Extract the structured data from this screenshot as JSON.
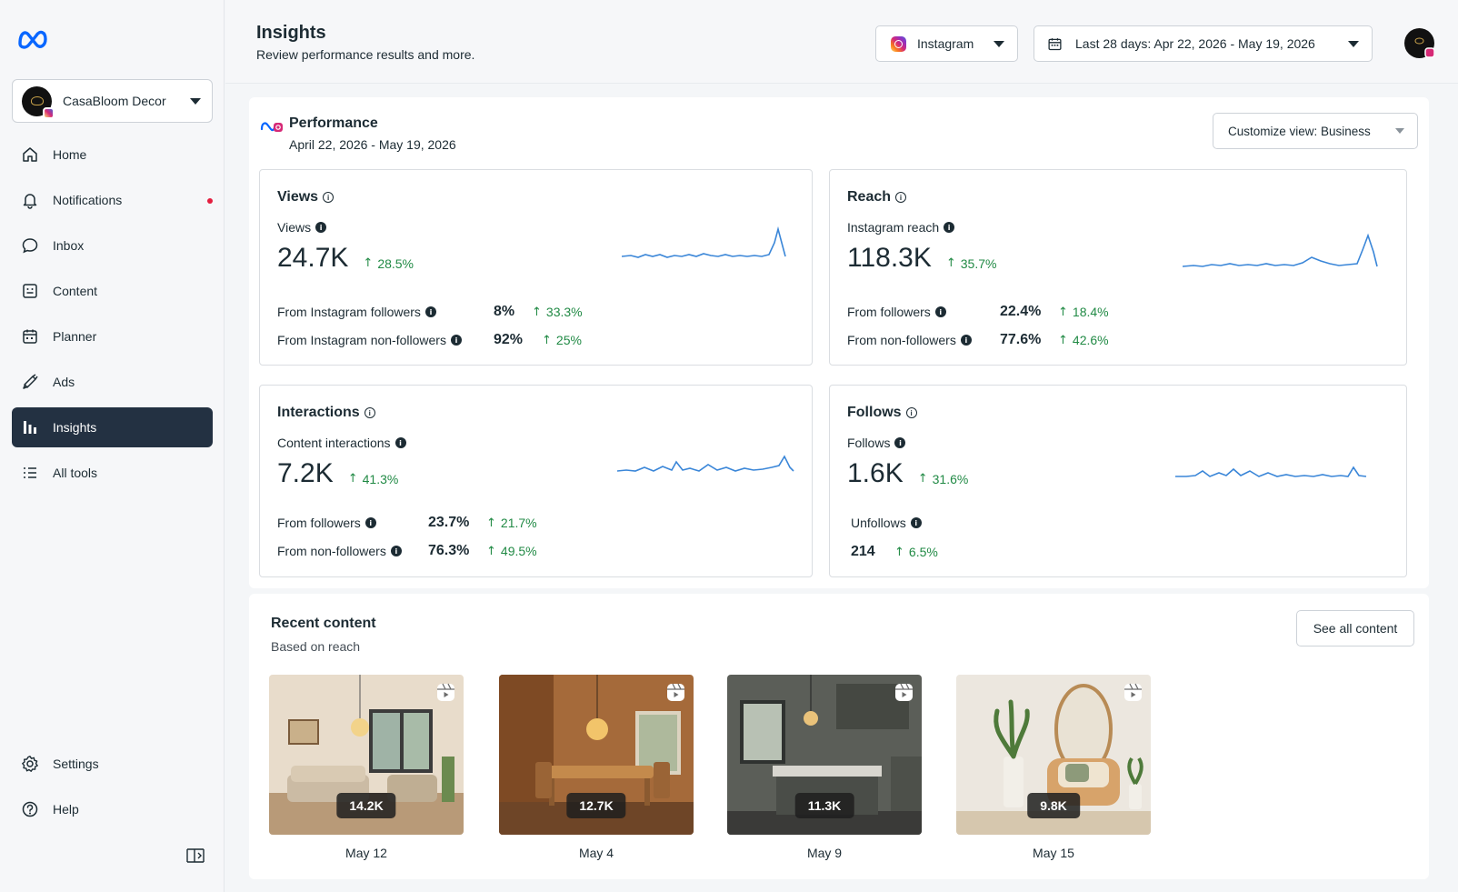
{
  "sidebar": {
    "account_name": "CasaBloom Decor",
    "nav": [
      {
        "label": "Home",
        "icon": "home-icon"
      },
      {
        "label": "Notifications",
        "icon": "bell-icon",
        "has_dot": true
      },
      {
        "label": "Inbox",
        "icon": "chat-bubble-icon"
      },
      {
        "label": "Content",
        "icon": "content-icon"
      },
      {
        "label": "Planner",
        "icon": "calendar-icon"
      },
      {
        "label": "Ads",
        "icon": "megaphone-icon"
      },
      {
        "label": "Insights",
        "icon": "bar-chart-icon",
        "active": true
      },
      {
        "label": "All tools",
        "icon": "menu-icon"
      }
    ],
    "bottom_nav": [
      {
        "label": "Settings",
        "icon": "gear-icon"
      },
      {
        "label": "Help",
        "icon": "help-icon"
      }
    ]
  },
  "header": {
    "title": "Insights",
    "subtitle": "Review performance results and more.",
    "platform": "Instagram",
    "date_range": "Last 28 days: Apr 22, 2026 - May 19, 2026"
  },
  "performance": {
    "title": "Performance",
    "range": "April 22, 2026 - May 19, 2026",
    "customize": "Customize view: Business",
    "cards": {
      "views": {
        "title": "Views",
        "metric_label": "Views",
        "value": "24.7K",
        "delta": "28.5%",
        "rows": [
          {
            "label": "From Instagram followers",
            "pct": "8%",
            "delta": "33.3%"
          },
          {
            "label": "From Instagram non-followers",
            "pct": "92%",
            "delta": "25%"
          }
        ]
      },
      "reach": {
        "title": "Reach",
        "metric_label": "Instagram reach",
        "value": "118.3K",
        "delta": "35.7%",
        "rows": [
          {
            "label": "From followers",
            "pct": "22.4%",
            "delta": "18.4%"
          },
          {
            "label": "From non-followers",
            "pct": "77.6%",
            "delta": "42.6%"
          }
        ]
      },
      "interactions": {
        "title": "Interactions",
        "metric_label": "Content interactions",
        "value": "7.2K",
        "delta": "41.3%",
        "rows": [
          {
            "label": "From followers",
            "pct": "23.7%",
            "delta": "21.7%"
          },
          {
            "label": "From non-followers",
            "pct": "76.3%",
            "delta": "49.5%"
          }
        ]
      },
      "follows": {
        "title": "Follows",
        "metric_label": "Follows",
        "value": "1.6K",
        "delta": "31.6%",
        "unfollows_label": "Unfollows",
        "unfollows_value": "214",
        "unfollows_delta": "6.5%"
      }
    }
  },
  "recent": {
    "title": "Recent content",
    "subtitle": "Based on reach",
    "see_all": "See all content",
    "items": [
      {
        "count": "14.2K",
        "date": "May 12"
      },
      {
        "count": "12.7K",
        "date": "May 4"
      },
      {
        "count": "11.3K",
        "date": "May 9"
      },
      {
        "count": "9.8K",
        "date": "May 15"
      }
    ]
  },
  "colors": {
    "accent": "#1877f2",
    "positive": "#218a45",
    "active_nav": "#233142",
    "spark": "#3a86d8"
  }
}
